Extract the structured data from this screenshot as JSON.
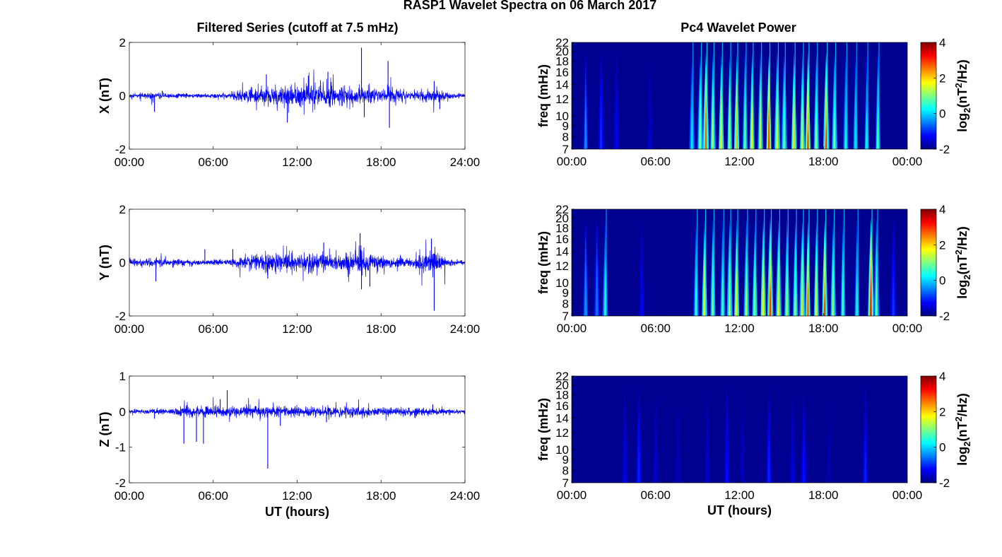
{
  "figure": {
    "title": "RASP1 Wavelet Spectra on 06 March 2017",
    "left_title": "Filtered Series (cutoff at 7.5 mHz)",
    "right_title": "Pc4 Wavelet Power",
    "xlabel": "UT (hours)"
  },
  "colors": {
    "series_line": "#0000ff",
    "axis": "#000000",
    "axes_background": "#ffffff",
    "colormap": "jet"
  },
  "chart_data": [
    {
      "type": "line",
      "panel": "x-series",
      "ylabel": "X (nT)",
      "ylim": [
        -2,
        2
      ],
      "yticks": [
        "-2",
        "0",
        "2"
      ],
      "xlim": [
        0,
        24
      ],
      "xticks": [
        "00:00",
        "06:00",
        "12:00",
        "18:00",
        "24:00"
      ],
      "baseline_noise": 0.04,
      "envelope": [
        {
          "t": 0,
          "amp": 0.06
        },
        {
          "t": 1.5,
          "amp": 0.1
        },
        {
          "t": 3,
          "amp": 0.08
        },
        {
          "t": 5,
          "amp": 0.06
        },
        {
          "t": 7,
          "amp": 0.07
        },
        {
          "t": 8,
          "amp": 0.2
        },
        {
          "t": 10,
          "amp": 0.3
        },
        {
          "t": 12,
          "amp": 0.35
        },
        {
          "t": 13.5,
          "amp": 0.4
        },
        {
          "t": 15,
          "amp": 0.3
        },
        {
          "t": 17,
          "amp": 0.25
        },
        {
          "t": 18.5,
          "amp": 0.2
        },
        {
          "t": 20,
          "amp": 0.15
        },
        {
          "t": 22,
          "amp": 0.2
        },
        {
          "t": 23,
          "amp": 0.08
        },
        {
          "t": 24,
          "amp": 0.06
        }
      ],
      "spikes": [
        {
          "t": 1.8,
          "v": -0.6
        },
        {
          "t": 9.8,
          "v": 0.8
        },
        {
          "t": 11.3,
          "v": -1.0
        },
        {
          "t": 12.8,
          "v": 0.75
        },
        {
          "t": 14.2,
          "v": 0.9
        },
        {
          "t": 16.6,
          "v": 1.8
        },
        {
          "t": 16.8,
          "v": -0.8
        },
        {
          "t": 18.5,
          "v": 1.3
        },
        {
          "t": 18.6,
          "v": -1.2
        },
        {
          "t": 21.8,
          "v": 0.55
        },
        {
          "t": 22.2,
          "v": -0.5
        }
      ]
    },
    {
      "type": "heatmap",
      "panel": "x-wavelet",
      "ylabel": "freq (mHz)",
      "ylim": [
        7,
        22
      ],
      "yticks": [
        "7",
        "8",
        "9",
        "10",
        "12",
        "14",
        "16",
        "18",
        "20",
        "22"
      ],
      "xlim": [
        0,
        24
      ],
      "xticks": [
        "00:00",
        "06:00",
        "12:00",
        "18:00",
        "00:00"
      ],
      "colorbar": {
        "label": "log2(nT2/Hz)",
        "range": [
          -2,
          4
        ],
        "ticks": [
          "-2",
          "0",
          "2",
          "4"
        ]
      },
      "bursts": [
        {
          "t": 1.0,
          "p": -0.3
        },
        {
          "t": 2.1,
          "p": -0.9
        },
        {
          "t": 3.2,
          "p": -1.2
        },
        {
          "t": 5.6,
          "p": -1.5
        },
        {
          "t": 8.6,
          "p": 0.3
        },
        {
          "t": 9.2,
          "p": 1.3
        },
        {
          "t": 9.6,
          "p": 3.1
        },
        {
          "t": 10.1,
          "p": 1.6
        },
        {
          "t": 10.7,
          "p": 2.2
        },
        {
          "t": 11.3,
          "p": 1.4
        },
        {
          "t": 11.8,
          "p": 2.5
        },
        {
          "t": 12.4,
          "p": 1.1
        },
        {
          "t": 12.9,
          "p": 2.1
        },
        {
          "t": 13.5,
          "p": 1.8
        },
        {
          "t": 14.1,
          "p": 3.3
        },
        {
          "t": 14.7,
          "p": 2.0
        },
        {
          "t": 15.2,
          "p": 1.2
        },
        {
          "t": 15.9,
          "p": 2.3
        },
        {
          "t": 16.5,
          "p": 1.9
        },
        {
          "t": 16.9,
          "p": 3.4
        },
        {
          "t": 17.5,
          "p": 1.5
        },
        {
          "t": 18.2,
          "p": 3.3
        },
        {
          "t": 18.8,
          "p": 1.3
        },
        {
          "t": 19.6,
          "p": 0.6
        },
        {
          "t": 20.3,
          "p": 0.3
        },
        {
          "t": 21.1,
          "p": 0.4
        },
        {
          "t": 21.9,
          "p": 0.9
        }
      ]
    },
    {
      "type": "line",
      "panel": "y-series",
      "ylabel": "Y (nT)",
      "ylim": [
        -2,
        2
      ],
      "yticks": [
        "-2",
        "0",
        "2"
      ],
      "xlim": [
        0,
        24
      ],
      "xticks": [
        "00:00",
        "06:00",
        "12:00",
        "18:00",
        "24:00"
      ],
      "baseline_noise": 0.04,
      "envelope": [
        {
          "t": 0,
          "amp": 0.1
        },
        {
          "t": 1.5,
          "amp": 0.15
        },
        {
          "t": 3,
          "amp": 0.1
        },
        {
          "t": 5,
          "amp": 0.08
        },
        {
          "t": 7,
          "amp": 0.08
        },
        {
          "t": 8,
          "amp": 0.2
        },
        {
          "t": 10,
          "amp": 0.3
        },
        {
          "t": 12,
          "amp": 0.25
        },
        {
          "t": 13.5,
          "amp": 0.3
        },
        {
          "t": 15,
          "amp": 0.28
        },
        {
          "t": 16.8,
          "amp": 0.4
        },
        {
          "t": 18.5,
          "amp": 0.2
        },
        {
          "t": 20,
          "amp": 0.15
        },
        {
          "t": 21.7,
          "amp": 0.4
        },
        {
          "t": 23,
          "amp": 0.08
        },
        {
          "t": 24,
          "amp": 0.07
        }
      ],
      "spikes": [
        {
          "t": 1.9,
          "v": -0.7
        },
        {
          "t": 5.4,
          "v": 0.5
        },
        {
          "t": 7.4,
          "v": 0.5
        },
        {
          "t": 9.9,
          "v": -0.6
        },
        {
          "t": 13.9,
          "v": 0.75
        },
        {
          "t": 16.5,
          "v": 1.1
        },
        {
          "t": 16.6,
          "v": -1.0
        },
        {
          "t": 17.2,
          "v": -0.9
        },
        {
          "t": 21.6,
          "v": 0.9
        },
        {
          "t": 21.8,
          "v": -1.8
        }
      ]
    },
    {
      "type": "heatmap",
      "panel": "y-wavelet",
      "ylabel": "freq (mHz)",
      "ylim": [
        7,
        22
      ],
      "yticks": [
        "7",
        "8",
        "9",
        "10",
        "12",
        "14",
        "16",
        "18",
        "20",
        "22"
      ],
      "xlim": [
        0,
        24
      ],
      "xticks": [
        "00:00",
        "06:00",
        "12:00",
        "18:00",
        "00:00"
      ],
      "colorbar": {
        "label": "log2(nT2/Hz)",
        "range": [
          -2,
          4
        ],
        "ticks": [
          "-2",
          "0",
          "2",
          "4"
        ]
      },
      "bursts": [
        {
          "t": 1.0,
          "p": -0.2
        },
        {
          "t": 1.8,
          "p": -0.4
        },
        {
          "t": 2.4,
          "p": 0.6
        },
        {
          "t": 5.0,
          "p": -1.2
        },
        {
          "t": 8.9,
          "p": 0.8
        },
        {
          "t": 9.5,
          "p": 2.2
        },
        {
          "t": 10.1,
          "p": 1.3
        },
        {
          "t": 10.8,
          "p": 0.9
        },
        {
          "t": 11.3,
          "p": 1.6
        },
        {
          "t": 11.8,
          "p": 2.0
        },
        {
          "t": 12.5,
          "p": 1.6
        },
        {
          "t": 13.1,
          "p": 1.3
        },
        {
          "t": 13.7,
          "p": 2.1
        },
        {
          "t": 14.2,
          "p": 3.4
        },
        {
          "t": 14.8,
          "p": 2.0
        },
        {
          "t": 15.4,
          "p": 1.6
        },
        {
          "t": 16.0,
          "p": 1.4
        },
        {
          "t": 16.5,
          "p": 2.3
        },
        {
          "t": 16.9,
          "p": 3.2
        },
        {
          "t": 17.5,
          "p": 2.2
        },
        {
          "t": 18.1,
          "p": 3.4
        },
        {
          "t": 18.7,
          "p": 1.5
        },
        {
          "t": 19.4,
          "p": 0.9
        },
        {
          "t": 20.4,
          "p": 0.5
        },
        {
          "t": 21.4,
          "p": 3.7
        },
        {
          "t": 21.8,
          "p": 1.2
        },
        {
          "t": 23.0,
          "p": -0.8
        }
      ]
    },
    {
      "type": "line",
      "panel": "z-series",
      "ylabel": "Z (nT)",
      "ylim": [
        -2,
        1
      ],
      "yticks": [
        "-2",
        "-1",
        "0",
        "1"
      ],
      "xlim": [
        0,
        24
      ],
      "xticks": [
        "00:00",
        "06:00",
        "12:00",
        "18:00",
        "24:00"
      ],
      "xlabel": "UT (hours)",
      "baseline_noise": 0.03,
      "envelope": [
        {
          "t": 0,
          "amp": 0.05
        },
        {
          "t": 3,
          "amp": 0.06
        },
        {
          "t": 3.8,
          "amp": 0.12
        },
        {
          "t": 6,
          "amp": 0.12
        },
        {
          "t": 8,
          "amp": 0.12
        },
        {
          "t": 10,
          "amp": 0.14
        },
        {
          "t": 12,
          "amp": 0.12
        },
        {
          "t": 14,
          "amp": 0.13
        },
        {
          "t": 16,
          "amp": 0.12
        },
        {
          "t": 18,
          "amp": 0.1
        },
        {
          "t": 20,
          "amp": 0.09
        },
        {
          "t": 22,
          "amp": 0.08
        },
        {
          "t": 23,
          "amp": 0.05
        },
        {
          "t": 24,
          "amp": 0.04
        }
      ],
      "spikes": [
        {
          "t": 1.8,
          "v": -0.2
        },
        {
          "t": 3.9,
          "v": -0.9
        },
        {
          "t": 4.8,
          "v": -0.85
        },
        {
          "t": 5.3,
          "v": -0.9
        },
        {
          "t": 6.5,
          "v": 0.35
        },
        {
          "t": 7.0,
          "v": 0.6
        },
        {
          "t": 9.9,
          "v": -1.6
        },
        {
          "t": 10.8,
          "v": -0.4
        },
        {
          "t": 14.1,
          "v": -0.3
        },
        {
          "t": 21.7,
          "v": 0.2
        }
      ]
    },
    {
      "type": "heatmap",
      "panel": "z-wavelet",
      "ylabel": "freq (mHz)",
      "ylim": [
        7,
        22
      ],
      "yticks": [
        "7",
        "8",
        "9",
        "10",
        "12",
        "14",
        "16",
        "18",
        "20",
        "22"
      ],
      "xlim": [
        0,
        24
      ],
      "xticks": [
        "00:00",
        "06:00",
        "12:00",
        "18:00",
        "00:00"
      ],
      "xlabel": "UT (hours)",
      "colorbar": {
        "label": "log2(nT2/Hz)",
        "range": [
          -2,
          4
        ],
        "ticks": [
          "-2",
          "0",
          "2",
          "4"
        ]
      },
      "bursts": [
        {
          "t": 3.8,
          "p": -1.3
        },
        {
          "t": 4.8,
          "p": -1.0
        },
        {
          "t": 6.0,
          "p": -1.5
        },
        {
          "t": 7.6,
          "p": -1.6
        },
        {
          "t": 9.7,
          "p": -1.5
        },
        {
          "t": 11.1,
          "p": -1.1
        },
        {
          "t": 12.2,
          "p": -1.6
        },
        {
          "t": 14.1,
          "p": -1.0
        },
        {
          "t": 15.8,
          "p": -1.4
        },
        {
          "t": 16.6,
          "p": -1.1
        },
        {
          "t": 18.4,
          "p": -1.7
        },
        {
          "t": 21.0,
          "p": -1.0
        }
      ]
    }
  ]
}
